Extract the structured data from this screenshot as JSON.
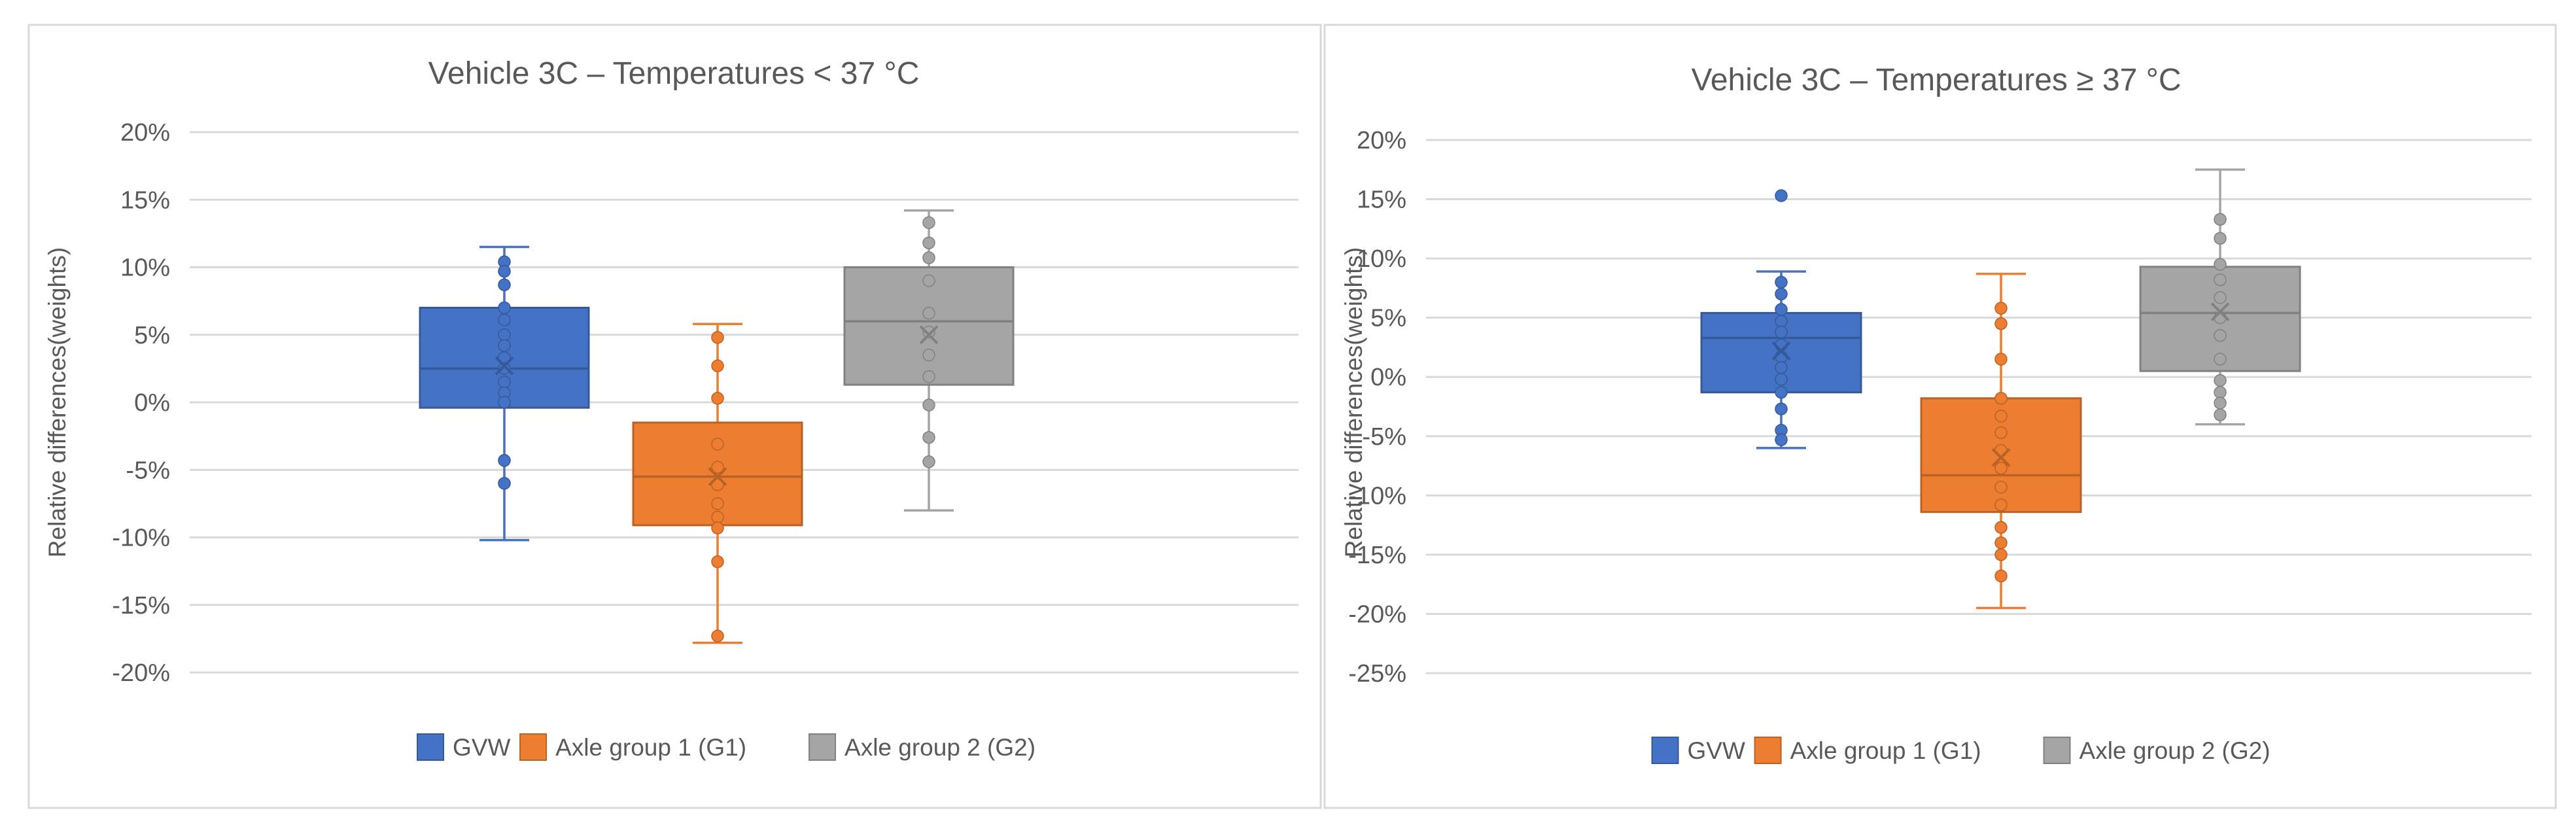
{
  "chart_data": [
    {
      "type": "box",
      "title": "Vehicle 3C – Temperatures  < 37 °C",
      "ylabel": "Relative differences(weights)",
      "ylim": [
        -0.2,
        0.2
      ],
      "yticks": [
        0.2,
        0.15,
        0.1,
        0.05,
        0.0,
        -0.05,
        -0.1,
        -0.15,
        -0.2
      ],
      "ytick_labels": [
        "20%",
        "15%",
        "10%",
        "5%",
        "0%",
        "-5%",
        "-10%",
        "-15%",
        "-20%"
      ],
      "grid": true,
      "legend_position": "bottom",
      "series": [
        {
          "name": "GVW",
          "color": "#4472C4",
          "min": -0.102,
          "q1": -0.004,
          "median": 0.025,
          "q3": 0.07,
          "max": 0.115,
          "mean": 0.027,
          "points": [
            0.104,
            0.097,
            0.087,
            0.07,
            0.061,
            0.05,
            0.042,
            0.033,
            0.025,
            0.015,
            0.007,
            0.0,
            -0.043,
            -0.06
          ]
        },
        {
          "name": "Axle group 1 (G1)",
          "color": "#ED7D31",
          "min": -0.178,
          "q1": -0.091,
          "median": -0.055,
          "q3": -0.015,
          "max": 0.058,
          "mean": -0.055,
          "points": [
            0.048,
            0.027,
            0.003,
            -0.031,
            -0.048,
            -0.061,
            -0.075,
            -0.085,
            -0.093,
            -0.118,
            -0.173
          ]
        },
        {
          "name": "Axle group 2 (G2)",
          "color": "#A5A5A5",
          "min": -0.08,
          "q1": 0.013,
          "median": 0.06,
          "q3": 0.1,
          "max": 0.142,
          "mean": 0.05,
          "points": [
            0.133,
            0.118,
            0.107,
            0.09,
            0.066,
            0.052,
            0.035,
            0.019,
            -0.002,
            -0.026,
            -0.044
          ]
        }
      ]
    },
    {
      "type": "box",
      "title": "Vehicle 3C – Temperatures  ≥ 37 °C",
      "ylabel": "Relative differences(weights)",
      "ylim": [
        -0.25,
        0.2
      ],
      "yticks": [
        0.2,
        0.15,
        0.1,
        0.05,
        0.0,
        -0.05,
        -0.1,
        -0.15,
        -0.2,
        -0.25
      ],
      "ytick_labels": [
        "20%",
        "15%",
        "10%",
        "5%",
        "0%",
        "-5%",
        "-10%",
        "-15%",
        "-20%",
        "-25%"
      ],
      "grid": true,
      "legend_position": "bottom",
      "series": [
        {
          "name": "GVW",
          "color": "#4472C4",
          "min": -0.06,
          "q1": -0.013,
          "median": 0.033,
          "q3": 0.054,
          "max": 0.089,
          "mean": 0.022,
          "points": [
            0.153,
            0.08,
            0.07,
            0.057,
            0.047,
            0.038,
            0.027,
            0.017,
            0.008,
            -0.002,
            -0.013,
            -0.027,
            -0.045,
            -0.053
          ]
        },
        {
          "name": "Axle group 1 (G1)",
          "color": "#ED7D31",
          "min": -0.195,
          "q1": -0.114,
          "median": -0.083,
          "q3": -0.018,
          "max": 0.087,
          "mean": -0.068,
          "points": [
            0.058,
            0.045,
            0.015,
            -0.018,
            -0.033,
            -0.047,
            -0.062,
            -0.077,
            -0.093,
            -0.108,
            -0.127,
            -0.14,
            -0.15,
            -0.168
          ]
        },
        {
          "name": "Axle group 2 (G2)",
          "color": "#A5A5A5",
          "min": -0.04,
          "q1": 0.005,
          "median": 0.054,
          "q3": 0.093,
          "max": 0.175,
          "mean": 0.055,
          "points": [
            0.133,
            0.117,
            0.095,
            0.082,
            0.067,
            0.05,
            0.035,
            0.015,
            -0.003,
            -0.013,
            -0.022,
            -0.032
          ]
        }
      ]
    }
  ]
}
